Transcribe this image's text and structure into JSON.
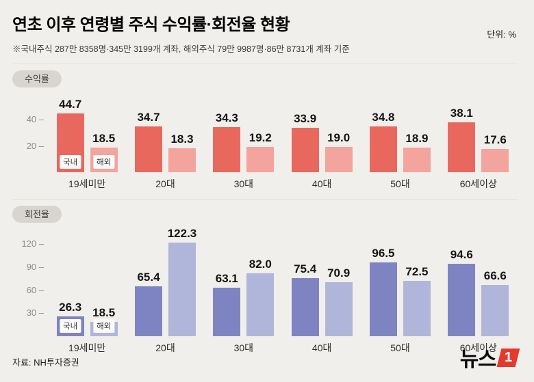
{
  "header": {
    "title": "연초 이후 연령별 주식 수익률·회전율 현황",
    "unit_label": "단위:  %",
    "subtitle": "※국내주식 287만 8358명·345만 3199개 계좌, 해외주식 79만 9987명·86만 8731개 계좌 기준"
  },
  "colors": {
    "background": "#f1efec",
    "badge_bg": "#d8d4d0",
    "returns_domestic": "#e8685e",
    "returns_overseas": "#f2a49d",
    "turnover_domestic": "#7e84c1",
    "turnover_overseas": "#b0b5da",
    "logo_red": "#e6392d"
  },
  "chart_data": [
    {
      "type": "bar",
      "title": "수익률",
      "categories": [
        "19세미만",
        "20대",
        "30대",
        "40대",
        "50대",
        "60세이상"
      ],
      "series": [
        {
          "name": "국내",
          "key": "domestic",
          "color": "#e8685e",
          "values": [
            44.7,
            34.7,
            34.3,
            33.9,
            34.8,
            38.1
          ]
        },
        {
          "name": "해외",
          "key": "overseas",
          "color": "#f2a49d",
          "values": [
            18.5,
            18.3,
            19.2,
            19.0,
            18.9,
            17.6
          ]
        }
      ],
      "yticks": [
        20,
        40
      ],
      "ylim": [
        0,
        52
      ],
      "grid": false,
      "legend_position": "inside-first-group",
      "value_labels": true,
      "unit": "%"
    },
    {
      "type": "bar",
      "title": "회전율",
      "categories": [
        "19세미만",
        "20대",
        "30대",
        "40대",
        "50대",
        "60세이상"
      ],
      "series": [
        {
          "name": "국내",
          "key": "domestic",
          "color": "#7e84c1",
          "values": [
            26.3,
            65.4,
            63.1,
            75.4,
            96.5,
            94.6
          ]
        },
        {
          "name": "해외",
          "key": "overseas",
          "color": "#b0b5da",
          "values": [
            18.5,
            122.3,
            82.0,
            70.9,
            72.5,
            66.6
          ]
        }
      ],
      "yticks": [
        30,
        60,
        90,
        120
      ],
      "ylim": [
        0,
        132
      ],
      "grid": false,
      "legend_position": "inside-first-group",
      "value_labels": true,
      "unit": "%"
    }
  ],
  "footer": {
    "source": "자료: NH투자증권",
    "logo_text": "뉴스",
    "logo_number": "1"
  }
}
